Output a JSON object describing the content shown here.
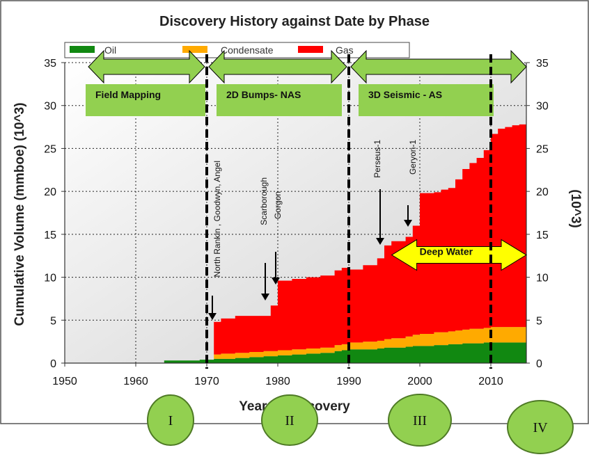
{
  "chart_data": {
    "type": "area",
    "title": "Discovery History against Date by Phase",
    "xlabel": "Year of Discovery",
    "ylabel": "Cumulative Volume (mmboe) (10^3)",
    "ylabel_right": "(10^3)",
    "xlim": [
      1950,
      2015
    ],
    "ylim": [
      0,
      35
    ],
    "x_ticks": [
      "1950",
      "1960",
      "1970",
      "1980",
      "1990",
      "2000",
      "2010"
    ],
    "y_ticks": [
      "0",
      "5",
      "10",
      "15",
      "20",
      "25",
      "30",
      "35"
    ],
    "legend_position": "top",
    "grid": true,
    "colors": {
      "oil": "#118811",
      "condensate": "#ffaa00",
      "gas": "#ff0000"
    },
    "x": [
      1964,
      1969,
      1970,
      1971,
      1972,
      1974,
      1976,
      1978,
      1979,
      1980,
      1982,
      1984,
      1986,
      1988,
      1989,
      1990,
      1992,
      1994,
      1995,
      1996,
      1998,
      1999,
      2000,
      2002,
      2003,
      2004,
      2005,
      2006,
      2007,
      2008,
      2009,
      2010,
      2011,
      2012,
      2013,
      2014,
      2015
    ],
    "series": [
      {
        "name": "Oil",
        "values": [
          0.3,
          0.4,
          0.4,
          0.5,
          0.5,
          0.6,
          0.7,
          0.8,
          0.8,
          0.9,
          1.0,
          1.1,
          1.2,
          1.4,
          1.5,
          1.6,
          1.6,
          1.7,
          1.8,
          1.8,
          1.9,
          2.0,
          2.0,
          2.1,
          2.1,
          2.2,
          2.2,
          2.3,
          2.3,
          2.3,
          2.4,
          2.4,
          2.4,
          2.4,
          2.4,
          2.4,
          2.4
        ]
      },
      {
        "name": "Condensate",
        "values": [
          0.0,
          0.0,
          0.0,
          0.5,
          0.6,
          0.6,
          0.6,
          0.6,
          0.6,
          0.6,
          0.6,
          0.6,
          0.6,
          0.7,
          0.7,
          0.8,
          0.9,
          0.9,
          1.0,
          1.1,
          1.2,
          1.3,
          1.4,
          1.5,
          1.5,
          1.5,
          1.6,
          1.6,
          1.7,
          1.7,
          1.7,
          1.8,
          1.8,
          1.8,
          1.8,
          1.8,
          1.8
        ]
      },
      {
        "name": "Gas",
        "values": [
          0.0,
          0.0,
          0.0,
          3.8,
          4.1,
          4.3,
          4.2,
          4.1,
          5.3,
          8.1,
          8.2,
          8.3,
          8.4,
          8.7,
          8.9,
          8.5,
          8.9,
          9.6,
          10.9,
          11.3,
          11.6,
          12.7,
          16.4,
          16.3,
          16.6,
          16.7,
          17.6,
          18.7,
          19.3,
          19.9,
          20.7,
          22.5,
          23.1,
          23.3,
          23.5,
          23.6,
          23.8
        ]
      }
    ],
    "phase_dividers": [
      1970,
      1990,
      2010
    ],
    "phases": [
      {
        "label": "Field Mapping",
        "from": 1950,
        "to": 1970
      },
      {
        "label": "2D Bumps- NAS",
        "from": 1970,
        "to": 1990
      },
      {
        "label": "3D Seismic - AS",
        "from": 1990,
        "to": 2015
      }
    ],
    "deep_water": {
      "label": "Deep Water",
      "from": 1998,
      "to": 2015,
      "y": 13
    },
    "annotations": [
      {
        "label": "North Rankin , Goodwyn, Angel",
        "year": 1971
      },
      {
        "label": "Scarborough",
        "year": 1979
      },
      {
        "label": "Gorgon",
        "year": 1980
      },
      {
        "label": "Perseus-1",
        "year": 1995
      },
      {
        "label": "Geryon-1",
        "year": 1999
      }
    ],
    "eras": [
      "I",
      "II",
      "III",
      "IV"
    ]
  }
}
